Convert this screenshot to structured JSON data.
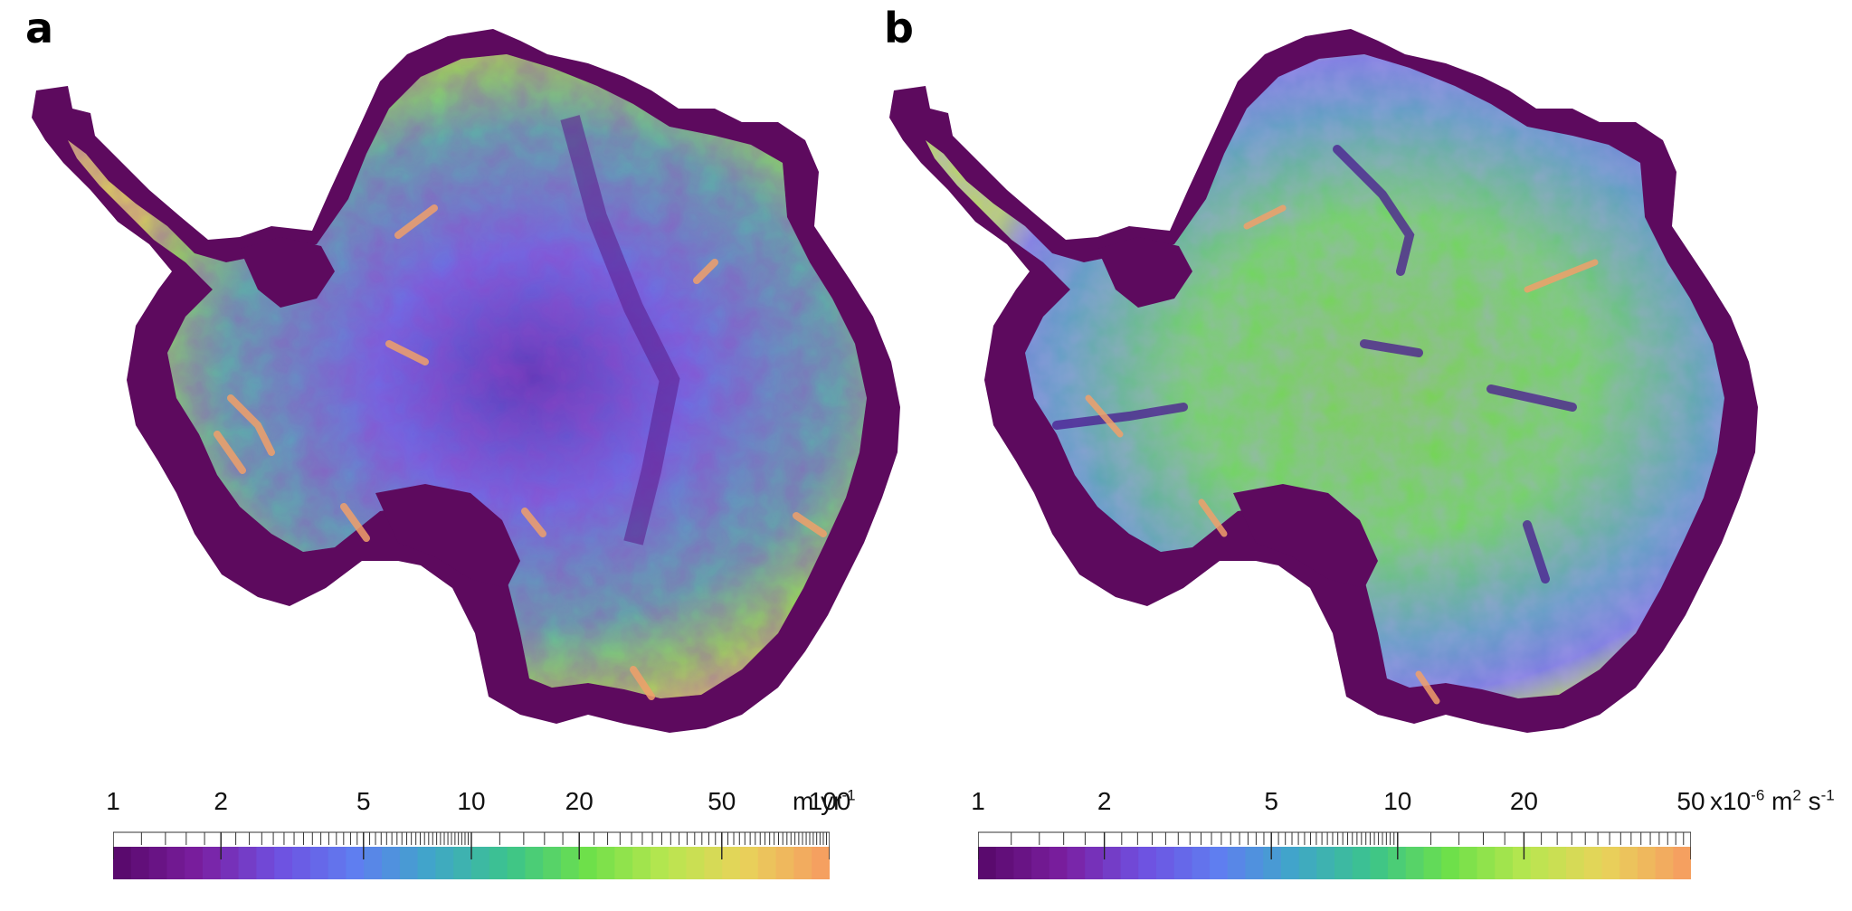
{
  "panels": [
    {
      "label": "a",
      "colorbar": {
        "tick_labels": [
          "1",
          "2",
          "5",
          "10",
          "20",
          "50",
          "100"
        ],
        "tick_values": [
          1,
          2,
          5,
          10,
          20,
          50,
          100
        ],
        "unit_main": "m yr",
        "unit_sup": "-1",
        "scale": "log",
        "range": [
          1,
          100
        ]
      }
    },
    {
      "label": "b",
      "colorbar": {
        "tick_labels": [
          "1",
          "2",
          "5",
          "10",
          "20",
          "50"
        ],
        "tick_values": [
          1,
          2,
          5,
          10,
          20,
          50
        ],
        "unit_prefix": "x10",
        "unit_prefix_sup": "-6",
        "unit_mid": " m",
        "unit_mid_sup": "2",
        "unit_end": " s",
        "unit_end_sup": "-1",
        "scale": "log",
        "range": [
          1,
          50
        ]
      }
    }
  ],
  "colormap": [
    "#5a0a6e",
    "#7b1fa0",
    "#6f4fe0",
    "#5f7ef0",
    "#3fa7c8",
    "#3cc48a",
    "#6ee04a",
    "#b8e64f",
    "#e8d35a",
    "#f5a060"
  ],
  "ocean_fill": "#5d0a5e",
  "background": "#ffffff"
}
